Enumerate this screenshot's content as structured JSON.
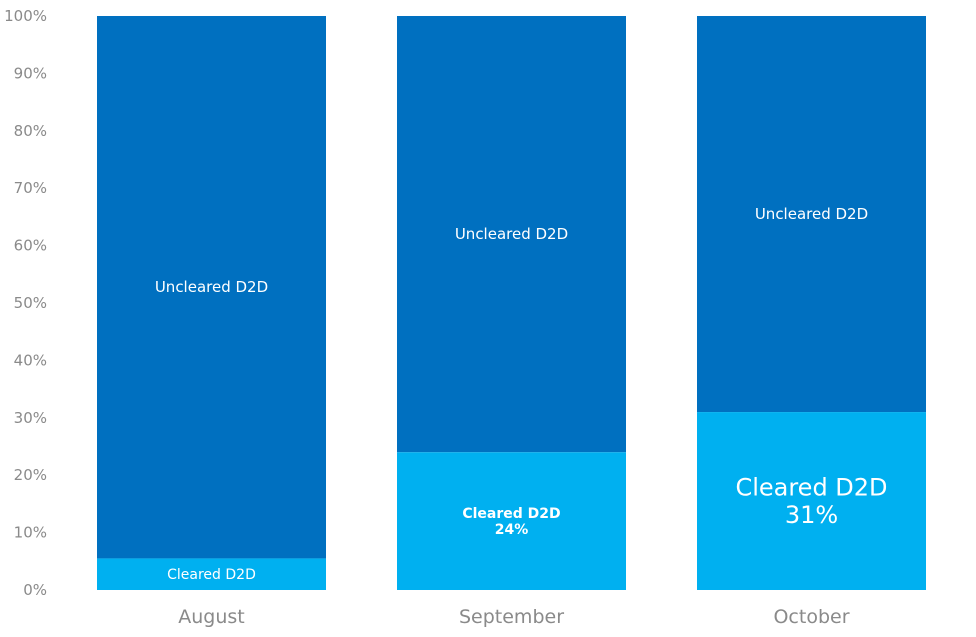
{
  "chart_data": {
    "type": "bar",
    "stacked": true,
    "percent": true,
    "categories": [
      "August",
      "September",
      "October"
    ],
    "series": [
      {
        "name": "Cleared D2D",
        "values": [
          5.5,
          24,
          31
        ],
        "color": "#00b0f0"
      },
      {
        "name": "Uncleared D2D",
        "values": [
          94.5,
          76,
          69
        ],
        "color": "#0070c0"
      }
    ],
    "data_labels": {
      "cleared": [
        "Cleared D2D",
        "Cleared D2D\n24%",
        "Cleared D2D\n31%"
      ],
      "uncleared": [
        "Uncleared D2D",
        "Uncleared D2D",
        "Uncleared D2D"
      ]
    },
    "yticks": [
      "0%",
      "10%",
      "20%",
      "30%",
      "40%",
      "50%",
      "60%",
      "70%",
      "80%",
      "90%",
      "100%"
    ],
    "ylim": [
      0,
      100
    ],
    "grid": false,
    "legend": "none"
  }
}
